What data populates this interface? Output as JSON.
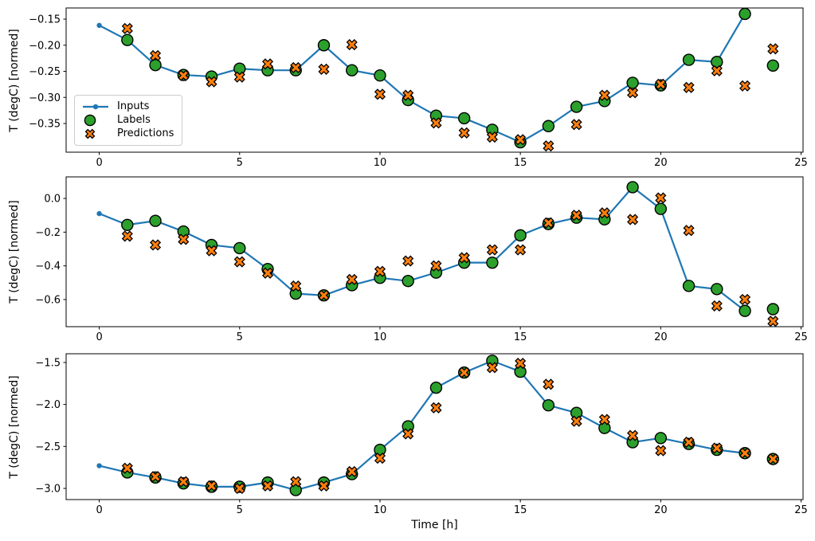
{
  "figure": {
    "background": "#ffffff"
  },
  "colors": {
    "inputs": "#1f77b4",
    "labels": "#2ca02c",
    "predictions": "#ff7f0e",
    "marker_edge": "#000000",
    "axis": "#000000"
  },
  "axes": {
    "ylabel": "T (degC) [normed]",
    "xlabel": "Time [h]"
  },
  "legend": {
    "items": [
      {
        "label": "Inputs"
      },
      {
        "label": "Labels"
      },
      {
        "label": "Predictions"
      }
    ]
  },
  "chart_data": [
    {
      "type": "line",
      "title": "",
      "ylabel": "T (degC) [normed]",
      "xlabel": "",
      "grid": false,
      "legend_position": "center left",
      "xlim": [
        -1.18,
        25.07
      ],
      "ylim": [
        -0.405,
        -0.1286
      ],
      "xticks": [
        0,
        5,
        10,
        15,
        20,
        25
      ],
      "xtick_labels": [
        "0",
        "5",
        "10",
        "15",
        "20",
        "25"
      ],
      "yticks": [
        -0.15,
        -0.2,
        -0.25,
        -0.3,
        -0.35
      ],
      "ytick_labels": [
        "−0.15",
        "−0.20",
        "−0.25",
        "−0.30",
        "−0.35"
      ],
      "series": [
        {
          "name": "Inputs",
          "type": "line",
          "marker": "point",
          "color": "#1f77b4",
          "x": [
            0,
            1,
            2,
            3,
            4,
            5,
            6,
            7,
            8,
            9,
            10,
            11,
            12,
            13,
            14,
            15,
            16,
            17,
            18,
            19,
            20,
            21,
            22,
            23
          ],
          "y": [
            -0.162,
            -0.19,
            -0.238,
            -0.257,
            -0.26,
            -0.245,
            -0.248,
            -0.248,
            -0.2,
            -0.248,
            -0.258,
            -0.305,
            -0.335,
            -0.34,
            -0.362,
            -0.386,
            -0.355,
            -0.318,
            -0.307,
            -0.272,
            -0.277,
            -0.228,
            -0.232,
            -0.14
          ]
        },
        {
          "name": "Labels",
          "type": "scatter",
          "marker": "circle",
          "color": "#2ca02c",
          "edge": "#000000",
          "x": [
            1,
            2,
            3,
            4,
            5,
            6,
            7,
            8,
            9,
            10,
            11,
            12,
            13,
            14,
            15,
            16,
            17,
            18,
            19,
            20,
            21,
            22,
            23,
            24
          ],
          "y": [
            -0.19,
            -0.238,
            -0.257,
            -0.26,
            -0.245,
            -0.248,
            -0.248,
            -0.2,
            -0.248,
            -0.258,
            -0.305,
            -0.335,
            -0.34,
            -0.362,
            -0.386,
            -0.355,
            -0.318,
            -0.307,
            -0.272,
            -0.277,
            -0.228,
            -0.232,
            -0.14,
            -0.239
          ]
        },
        {
          "name": "Predictions",
          "type": "scatter",
          "marker": "X",
          "color": "#ff7f0e",
          "edge": "#000000",
          "x": [
            1,
            2,
            3,
            4,
            5,
            6,
            7,
            8,
            9,
            10,
            11,
            12,
            13,
            14,
            15,
            16,
            17,
            18,
            19,
            20,
            21,
            22,
            23,
            24
          ],
          "y": [
            -0.168,
            -0.22,
            -0.258,
            -0.27,
            -0.261,
            -0.236,
            -0.243,
            -0.246,
            -0.199,
            -0.294,
            -0.296,
            -0.349,
            -0.368,
            -0.376,
            -0.381,
            -0.393,
            -0.352,
            -0.296,
            -0.291,
            -0.275,
            -0.281,
            -0.249,
            -0.278,
            -0.207
          ]
        }
      ]
    },
    {
      "type": "line",
      "title": "",
      "ylabel": "T (degC) [normed]",
      "xlabel": "",
      "grid": false,
      "xlim": [
        -1.18,
        25.07
      ],
      "ylim": [
        -0.761,
        0.128
      ],
      "xticks": [
        0,
        5,
        10,
        15,
        20,
        25
      ],
      "xtick_labels": [
        "0",
        "5",
        "10",
        "15",
        "20",
        "25"
      ],
      "yticks": [
        0.0,
        -0.2,
        -0.4,
        -0.6
      ],
      "ytick_labels": [
        "0.0",
        "−0.2",
        "−0.4",
        "−0.6"
      ],
      "series": [
        {
          "name": "Inputs",
          "type": "line",
          "marker": "point",
          "color": "#1f77b4",
          "x": [
            0,
            1,
            2,
            3,
            4,
            5,
            6,
            7,
            8,
            9,
            10,
            11,
            12,
            13,
            14,
            15,
            16,
            17,
            18,
            19,
            20,
            21,
            22,
            23
          ],
          "y": [
            -0.09,
            -0.157,
            -0.133,
            -0.196,
            -0.276,
            -0.295,
            -0.419,
            -0.565,
            -0.575,
            -0.515,
            -0.471,
            -0.49,
            -0.44,
            -0.381,
            -0.381,
            -0.219,
            -0.152,
            -0.114,
            -0.124,
            0.067,
            -0.062,
            -0.519,
            -0.538,
            -0.667
          ]
        },
        {
          "name": "Labels",
          "type": "scatter",
          "marker": "circle",
          "color": "#2ca02c",
          "edge": "#000000",
          "x": [
            1,
            2,
            3,
            4,
            5,
            6,
            7,
            8,
            9,
            10,
            11,
            12,
            13,
            14,
            15,
            16,
            17,
            18,
            19,
            20,
            21,
            22,
            23,
            24
          ],
          "y": [
            -0.157,
            -0.133,
            -0.196,
            -0.276,
            -0.295,
            -0.419,
            -0.565,
            -0.575,
            -0.515,
            -0.471,
            -0.49,
            -0.44,
            -0.381,
            -0.381,
            -0.219,
            -0.152,
            -0.114,
            -0.124,
            0.067,
            -0.062,
            -0.519,
            -0.538,
            -0.667,
            -0.657
          ]
        },
        {
          "name": "Predictions",
          "type": "scatter",
          "marker": "X",
          "color": "#ff7f0e",
          "edge": "#000000",
          "x": [
            1,
            2,
            3,
            4,
            5,
            6,
            7,
            8,
            9,
            10,
            11,
            12,
            13,
            14,
            15,
            16,
            17,
            18,
            19,
            20,
            21,
            22,
            23,
            24
          ],
          "y": [
            -0.224,
            -0.276,
            -0.243,
            -0.31,
            -0.376,
            -0.443,
            -0.52,
            -0.575,
            -0.481,
            -0.433,
            -0.371,
            -0.4,
            -0.352,
            -0.305,
            -0.305,
            -0.145,
            -0.1,
            -0.086,
            -0.125,
            0.003,
            -0.19,
            -0.638,
            -0.6,
            -0.729
          ]
        }
      ]
    },
    {
      "type": "line",
      "title": "",
      "ylabel": "T (degC) [normed]",
      "xlabel": "Time [h]",
      "grid": false,
      "xlim": [
        -1.18,
        25.07
      ],
      "ylim": [
        -3.133,
        -1.396
      ],
      "xticks": [
        0,
        5,
        10,
        15,
        20,
        25
      ],
      "xtick_labels": [
        "0",
        "5",
        "10",
        "15",
        "20",
        "25"
      ],
      "yticks": [
        -1.5,
        -2.0,
        -2.5,
        -3.0
      ],
      "ytick_labels": [
        "−1.5",
        "−2.0",
        "−2.5",
        "−3.0"
      ],
      "series": [
        {
          "name": "Inputs",
          "type": "line",
          "marker": "point",
          "color": "#1f77b4",
          "x": [
            0,
            1,
            2,
            3,
            4,
            5,
            6,
            7,
            8,
            9,
            10,
            11,
            12,
            13,
            14,
            15,
            16,
            17,
            18,
            19,
            20,
            21,
            22,
            23
          ],
          "y": [
            -2.73,
            -2.81,
            -2.87,
            -2.94,
            -2.98,
            -2.98,
            -2.93,
            -3.02,
            -2.93,
            -2.83,
            -2.54,
            -2.26,
            -1.8,
            -1.62,
            -1.48,
            -1.61,
            -2.01,
            -2.1,
            -2.28,
            -2.45,
            -2.4,
            -2.47,
            -2.54,
            -2.58
          ]
        },
        {
          "name": "Labels",
          "type": "scatter",
          "marker": "circle",
          "color": "#2ca02c",
          "edge": "#000000",
          "x": [
            1,
            2,
            3,
            4,
            5,
            6,
            7,
            8,
            9,
            10,
            11,
            12,
            13,
            14,
            15,
            16,
            17,
            18,
            19,
            20,
            21,
            22,
            23,
            24
          ],
          "y": [
            -2.81,
            -2.87,
            -2.94,
            -2.98,
            -2.98,
            -2.93,
            -3.02,
            -2.93,
            -2.83,
            -2.54,
            -2.26,
            -1.8,
            -1.62,
            -1.48,
            -1.61,
            -2.01,
            -2.1,
            -2.28,
            -2.45,
            -2.4,
            -2.47,
            -2.54,
            -2.58,
            -2.65
          ]
        },
        {
          "name": "Predictions",
          "type": "scatter",
          "marker": "X",
          "color": "#ff7f0e",
          "edge": "#000000",
          "x": [
            1,
            2,
            3,
            4,
            5,
            6,
            7,
            8,
            9,
            10,
            11,
            12,
            13,
            14,
            15,
            16,
            17,
            18,
            19,
            20,
            21,
            22,
            23,
            24
          ],
          "y": [
            -2.76,
            -2.86,
            -2.92,
            -2.97,
            -3.0,
            -2.97,
            -2.92,
            -2.97,
            -2.8,
            -2.64,
            -2.35,
            -2.04,
            -1.62,
            -1.56,
            -1.51,
            -1.76,
            -2.2,
            -2.18,
            -2.37,
            -2.55,
            -2.45,
            -2.52,
            -2.58,
            -2.65
          ]
        }
      ]
    }
  ]
}
